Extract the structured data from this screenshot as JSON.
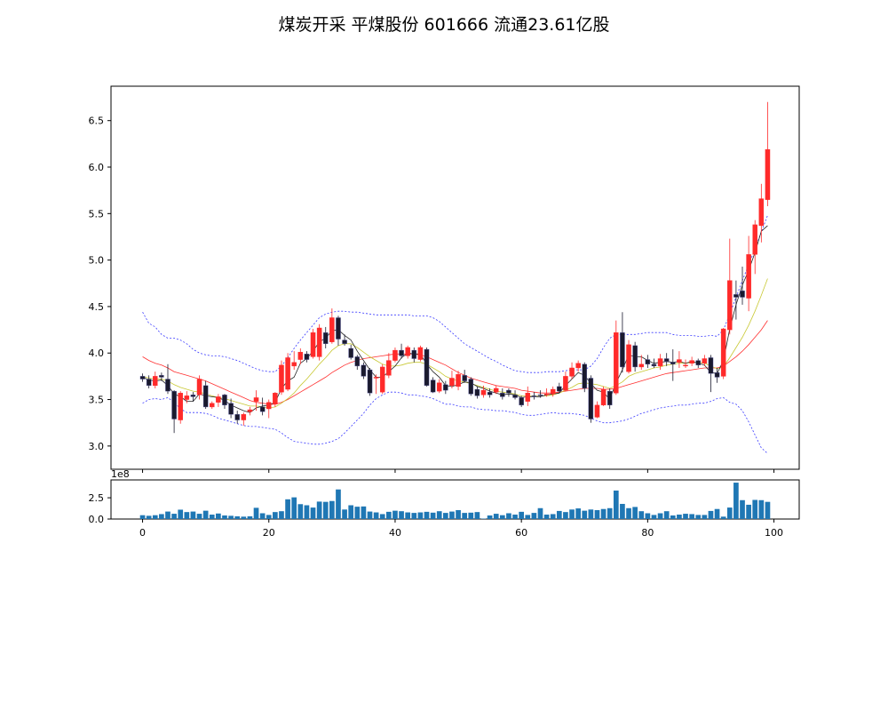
{
  "title": "煤炭开采 平煤股份 601666 流通23.61亿股",
  "colors": {
    "up": "#ff2a2a",
    "down": "#1a1a2e",
    "ma_short": "#222222",
    "ma_mid": "#c8c832",
    "ma_long": "#ff3030",
    "boll": "#3a3aff",
    "volume": "#1f77b4"
  },
  "chart_data": [
    {
      "type": "candlestick",
      "ylim": [
        2.75,
        6.87
      ],
      "yticks": [
        3.0,
        3.5,
        4.0,
        4.5,
        5.0,
        5.5,
        6.0,
        6.5
      ],
      "ytick_labels": [
        "3.0",
        "3.5",
        "4.0",
        "4.5",
        "5.0",
        "5.5",
        "6.0",
        "6.5"
      ],
      "xlim": [
        -5,
        104
      ],
      "x": [
        0,
        1,
        2,
        3,
        4,
        5,
        6,
        7,
        8,
        9,
        10,
        11,
        12,
        13,
        14,
        15,
        16,
        17,
        18,
        19,
        20,
        21,
        22,
        23,
        24,
        25,
        26,
        27,
        28,
        29,
        30,
        31,
        32,
        33,
        34,
        35,
        36,
        37,
        38,
        39,
        40,
        41,
        42,
        43,
        44,
        45,
        46,
        47,
        48,
        49,
        50,
        51,
        52,
        53,
        54,
        55,
        56,
        57,
        58,
        59,
        60,
        61,
        62,
        63,
        64,
        65,
        66,
        67,
        68,
        69,
        70,
        71,
        72,
        73,
        74,
        75,
        76,
        77,
        78,
        79,
        80,
        81,
        82,
        83,
        84,
        85,
        86,
        87,
        88,
        89,
        90,
        91,
        92,
        93,
        94,
        95,
        96,
        97,
        98,
        99
      ],
      "open": [
        3.75,
        3.72,
        3.65,
        3.76,
        3.72,
        3.59,
        3.28,
        3.5,
        3.55,
        3.55,
        3.65,
        3.42,
        3.47,
        3.55,
        3.46,
        3.34,
        3.28,
        3.37,
        3.48,
        3.42,
        3.4,
        3.45,
        3.58,
        3.61,
        3.86,
        3.93,
        3.99,
        3.96,
        3.96,
        4.22,
        4.12,
        4.38,
        4.14,
        4.05,
        3.96,
        3.87,
        3.82,
        3.73,
        3.58,
        3.76,
        3.92,
        4.03,
        3.97,
        4.03,
        3.93,
        4.04,
        3.71,
        3.59,
        3.66,
        3.65,
        3.64,
        3.76,
        3.72,
        3.61,
        3.55,
        3.58,
        3.58,
        3.57,
        3.6,
        3.55,
        3.52,
        3.48,
        3.54,
        3.55,
        3.56,
        3.56,
        3.64,
        3.6,
        3.75,
        3.84,
        3.88,
        3.73,
        3.31,
        3.44,
        3.59,
        3.57,
        4.22,
        3.8,
        4.08,
        3.85,
        3.93,
        3.88,
        3.86,
        3.94,
        3.9,
        3.9,
        3.86,
        3.89,
        3.92,
        3.89,
        3.95,
        3.79,
        3.75,
        4.25,
        4.63,
        4.67,
        4.59,
        5.06,
        5.37,
        5.65
      ],
      "close": [
        3.72,
        3.65,
        3.75,
        3.74,
        3.59,
        3.29,
        3.57,
        3.54,
        3.53,
        3.72,
        3.42,
        3.46,
        3.53,
        3.44,
        3.34,
        3.28,
        3.34,
        3.39,
        3.52,
        3.37,
        3.47,
        3.57,
        3.87,
        3.95,
        3.9,
        4.01,
        3.93,
        4.22,
        4.27,
        4.1,
        4.38,
        4.15,
        4.1,
        3.95,
        3.86,
        3.75,
        3.57,
        3.74,
        3.85,
        3.92,
        4.03,
        3.97,
        4.06,
        3.94,
        4.06,
        3.65,
        3.58,
        3.68,
        3.6,
        3.73,
        3.77,
        3.7,
        3.56,
        3.54,
        3.6,
        3.55,
        3.62,
        3.53,
        3.57,
        3.52,
        3.44,
        3.57,
        3.53,
        3.54,
        3.56,
        3.61,
        3.59,
        3.75,
        3.84,
        3.89,
        3.62,
        3.29,
        3.44,
        3.61,
        3.44,
        4.22,
        3.85,
        4.09,
        3.85,
        3.88,
        3.88,
        3.86,
        3.94,
        3.91,
        3.88,
        3.93,
        3.87,
        3.92,
        3.87,
        3.94,
        3.78,
        3.74,
        4.26,
        4.78,
        4.6,
        4.6,
        5.06,
        5.38,
        5.66,
        6.19
      ],
      "high": [
        3.78,
        3.76,
        3.8,
        3.79,
        3.88,
        3.6,
        3.59,
        3.59,
        3.58,
        3.76,
        3.7,
        3.48,
        3.56,
        3.56,
        3.51,
        3.38,
        3.36,
        3.42,
        3.6,
        3.52,
        3.5,
        3.58,
        3.92,
        4.0,
        4.02,
        4.05,
        4.02,
        4.26,
        4.31,
        4.28,
        4.48,
        4.4,
        4.2,
        4.09,
        3.98,
        3.9,
        3.84,
        3.77,
        3.88,
        4.0,
        4.06,
        4.1,
        4.08,
        4.06,
        4.08,
        4.06,
        3.74,
        3.72,
        3.7,
        3.81,
        3.81,
        3.82,
        3.74,
        3.64,
        3.65,
        3.62,
        3.65,
        3.62,
        3.62,
        3.6,
        3.54,
        3.64,
        3.58,
        3.6,
        3.62,
        3.64,
        3.68,
        3.8,
        3.9,
        3.92,
        3.9,
        3.76,
        3.48,
        3.64,
        3.62,
        4.35,
        4.44,
        4.14,
        4.12,
        3.98,
        3.98,
        3.94,
        3.99,
        4.0,
        4.04,
        4.02,
        3.93,
        3.96,
        3.94,
        3.98,
        3.98,
        3.84,
        4.27,
        5.23,
        4.78,
        4.93,
        5.26,
        5.43,
        5.82,
        6.7
      ],
      "low": [
        3.69,
        3.62,
        3.62,
        3.7,
        3.56,
        3.14,
        3.24,
        3.46,
        3.48,
        3.5,
        3.4,
        3.4,
        3.42,
        3.4,
        3.3,
        3.24,
        3.22,
        3.33,
        3.38,
        3.33,
        3.3,
        3.42,
        3.55,
        3.59,
        3.82,
        3.88,
        3.9,
        3.94,
        3.92,
        4.05,
        4.1,
        4.08,
        4.08,
        3.93,
        3.82,
        3.72,
        3.54,
        3.56,
        3.56,
        3.73,
        3.9,
        3.94,
        3.94,
        3.9,
        3.91,
        3.64,
        3.57,
        3.57,
        3.56,
        3.62,
        3.6,
        3.68,
        3.54,
        3.51,
        3.52,
        3.52,
        3.56,
        3.5,
        3.53,
        3.5,
        3.42,
        3.43,
        3.5,
        3.52,
        3.53,
        3.53,
        3.57,
        3.59,
        3.72,
        3.8,
        3.58,
        3.25,
        3.3,
        3.43,
        3.4,
        3.55,
        3.79,
        3.78,
        3.8,
        3.82,
        3.84,
        3.84,
        3.82,
        3.86,
        3.7,
        3.84,
        3.84,
        3.86,
        3.84,
        3.86,
        3.58,
        3.68,
        3.72,
        4.2,
        4.36,
        4.52,
        4.45,
        4.85,
        5.19,
        5.58
      ],
      "ma_short": [
        3.74,
        3.71,
        3.7,
        3.71,
        3.65,
        3.56,
        3.53,
        3.48,
        3.48,
        3.56,
        3.54,
        3.53,
        3.52,
        3.49,
        3.44,
        3.41,
        3.38,
        3.36,
        3.41,
        3.43,
        3.44,
        3.47,
        3.62,
        3.7,
        3.74,
        3.89,
        3.94,
        4.02,
        4.12,
        4.16,
        4.24,
        4.25,
        4.19,
        4.14,
        4.02,
        3.92,
        3.82,
        3.74,
        3.74,
        3.8,
        3.86,
        3.95,
        4.0,
        3.99,
        3.99,
        3.88,
        3.8,
        3.74,
        3.65,
        3.64,
        3.66,
        3.69,
        3.68,
        3.64,
        3.62,
        3.59,
        3.57,
        3.55,
        3.56,
        3.55,
        3.52,
        3.53,
        3.53,
        3.53,
        3.55,
        3.56,
        3.57,
        3.65,
        3.72,
        3.79,
        3.76,
        3.67,
        3.6,
        3.58,
        3.5,
        3.68,
        3.82,
        3.98,
        3.96,
        3.96,
        3.92,
        3.89,
        3.9,
        3.91,
        3.9,
        3.91,
        3.89,
        3.91,
        3.89,
        3.87,
        3.79,
        3.78,
        3.92,
        4.26,
        4.52,
        4.73,
        4.89,
        5.08,
        5.31,
        5.37
      ],
      "ma_mid": [
        3.75,
        3.73,
        3.72,
        3.72,
        3.7,
        3.66,
        3.63,
        3.61,
        3.59,
        3.58,
        3.56,
        3.54,
        3.52,
        3.51,
        3.49,
        3.47,
        3.45,
        3.43,
        3.43,
        3.42,
        3.41,
        3.42,
        3.46,
        3.51,
        3.57,
        3.65,
        3.72,
        3.8,
        3.88,
        3.95,
        4.03,
        4.08,
        4.1,
        4.1,
        4.06,
        4.01,
        3.96,
        3.92,
        3.88,
        3.86,
        3.86,
        3.87,
        3.89,
        3.9,
        3.9,
        3.88,
        3.84,
        3.8,
        3.75,
        3.72,
        3.7,
        3.69,
        3.67,
        3.65,
        3.63,
        3.61,
        3.59,
        3.58,
        3.57,
        3.56,
        3.54,
        3.54,
        3.54,
        3.54,
        3.54,
        3.55,
        3.57,
        3.6,
        3.63,
        3.67,
        3.68,
        3.67,
        3.66,
        3.64,
        3.62,
        3.65,
        3.69,
        3.75,
        3.78,
        3.8,
        3.82,
        3.84,
        3.85,
        3.87,
        3.88,
        3.89,
        3.89,
        3.9,
        3.9,
        3.89,
        3.86,
        3.83,
        3.85,
        3.95,
        4.06,
        4.17,
        4.3,
        4.45,
        4.62,
        4.8
      ],
      "ma_long": [
        3.96,
        3.92,
        3.89,
        3.87,
        3.84,
        3.8,
        3.78,
        3.76,
        3.74,
        3.72,
        3.7,
        3.67,
        3.64,
        3.61,
        3.58,
        3.55,
        3.52,
        3.49,
        3.47,
        3.46,
        3.45,
        3.45,
        3.47,
        3.5,
        3.54,
        3.58,
        3.62,
        3.66,
        3.7,
        3.74,
        3.79,
        3.83,
        3.87,
        3.9,
        3.92,
        3.94,
        3.95,
        3.96,
        3.97,
        3.98,
        3.99,
        3.99,
        3.99,
        3.99,
        3.98,
        3.96,
        3.93,
        3.9,
        3.87,
        3.83,
        3.79,
        3.76,
        3.73,
        3.71,
        3.69,
        3.67,
        3.65,
        3.64,
        3.63,
        3.62,
        3.6,
        3.59,
        3.58,
        3.57,
        3.57,
        3.57,
        3.58,
        3.59,
        3.6,
        3.61,
        3.62,
        3.62,
        3.62,
        3.61,
        3.61,
        3.62,
        3.64,
        3.66,
        3.68,
        3.7,
        3.72,
        3.74,
        3.76,
        3.78,
        3.79,
        3.8,
        3.81,
        3.82,
        3.83,
        3.84,
        3.84,
        3.84,
        3.86,
        3.91,
        3.96,
        4.02,
        4.09,
        4.17,
        4.25,
        4.35
      ],
      "boll_upper": [
        4.44,
        4.32,
        4.28,
        4.2,
        4.16,
        4.16,
        4.14,
        4.1,
        4.04,
        4.0,
        3.98,
        3.97,
        3.97,
        3.96,
        3.94,
        3.92,
        3.89,
        3.86,
        3.83,
        3.81,
        3.8,
        3.8,
        3.86,
        3.95,
        4.05,
        4.14,
        4.22,
        4.3,
        4.38,
        4.42,
        4.44,
        4.45,
        4.45,
        4.44,
        4.44,
        4.43,
        4.42,
        4.41,
        4.41,
        4.41,
        4.41,
        4.41,
        4.41,
        4.4,
        4.4,
        4.4,
        4.38,
        4.34,
        4.28,
        4.22,
        4.16,
        4.1,
        4.06,
        4.02,
        3.98,
        3.94,
        3.91,
        3.87,
        3.84,
        3.81,
        3.8,
        3.79,
        3.79,
        3.79,
        3.8,
        3.8,
        3.8,
        3.81,
        3.82,
        3.82,
        3.82,
        3.86,
        3.94,
        4.06,
        4.16,
        4.2,
        4.2,
        4.2,
        4.2,
        4.21,
        4.22,
        4.22,
        4.22,
        4.22,
        4.2,
        4.19,
        4.19,
        4.19,
        4.18,
        4.18,
        4.19,
        4.18,
        4.25,
        4.42,
        4.6,
        4.78,
        4.95,
        5.12,
        5.3,
        5.48
      ],
      "boll_lower": [
        3.46,
        3.5,
        3.51,
        3.5,
        3.52,
        3.47,
        3.4,
        3.36,
        3.36,
        3.36,
        3.35,
        3.33,
        3.3,
        3.28,
        3.26,
        3.24,
        3.22,
        3.21,
        3.21,
        3.2,
        3.19,
        3.18,
        3.14,
        3.09,
        3.05,
        3.04,
        3.03,
        3.02,
        3.02,
        3.03,
        3.05,
        3.08,
        3.14,
        3.21,
        3.28,
        3.35,
        3.44,
        3.51,
        3.55,
        3.58,
        3.58,
        3.57,
        3.55,
        3.55,
        3.54,
        3.53,
        3.51,
        3.48,
        3.45,
        3.45,
        3.43,
        3.42,
        3.42,
        3.4,
        3.39,
        3.39,
        3.38,
        3.38,
        3.37,
        3.36,
        3.34,
        3.33,
        3.33,
        3.34,
        3.35,
        3.36,
        3.35,
        3.35,
        3.35,
        3.34,
        3.33,
        3.3,
        3.27,
        3.25,
        3.25,
        3.26,
        3.27,
        3.29,
        3.32,
        3.35,
        3.37,
        3.39,
        3.41,
        3.42,
        3.43,
        3.44,
        3.44,
        3.45,
        3.46,
        3.46,
        3.48,
        3.51,
        3.52,
        3.47,
        3.45,
        3.38,
        3.26,
        3.12,
        2.98,
        2.92
      ]
    },
    {
      "type": "bar",
      "ylim": [
        0,
        4.6
      ],
      "yticks": [
        0.0,
        2.5
      ],
      "ytick_labels": [
        "0.0",
        "2.5"
      ],
      "offset_label": "1e8",
      "xlim": [
        -5,
        104
      ],
      "xticks": [
        0,
        20,
        40,
        60,
        80,
        100
      ],
      "xtick_labels": [
        "0",
        "20",
        "40",
        "60",
        "80",
        "100"
      ],
      "values": [
        0.45,
        0.38,
        0.45,
        0.58,
        0.88,
        0.62,
        1.1,
        0.82,
        0.88,
        0.62,
        0.98,
        0.52,
        0.65,
        0.42,
        0.38,
        0.32,
        0.28,
        0.32,
        1.32,
        0.68,
        0.48,
        0.82,
        0.92,
        2.32,
        2.55,
        1.75,
        1.62,
        1.35,
        2.05,
        2.02,
        2.12,
        3.48,
        1.12,
        1.62,
        1.45,
        1.48,
        0.88,
        0.78,
        0.58,
        0.85,
        0.98,
        0.92,
        0.78,
        0.72,
        0.78,
        0.85,
        0.75,
        0.92,
        0.72,
        0.88,
        1.05,
        0.72,
        0.75,
        0.82,
        0.05,
        0.42,
        0.62,
        0.45,
        0.68,
        0.52,
        0.85,
        0.48,
        0.72,
        1.28,
        0.52,
        0.58,
        0.95,
        0.82,
        1.12,
        1.25,
        0.98,
        1.12,
        1.05,
        1.18,
        1.28,
        3.35,
        1.78,
        1.28,
        1.42,
        0.92,
        0.68,
        0.48,
        0.68,
        0.92,
        0.42,
        0.52,
        0.62,
        0.58,
        0.48,
        0.48,
        0.95,
        1.18,
        0.28,
        1.35,
        4.28,
        2.22,
        1.68,
        2.25,
        2.22,
        2.02
      ]
    }
  ]
}
